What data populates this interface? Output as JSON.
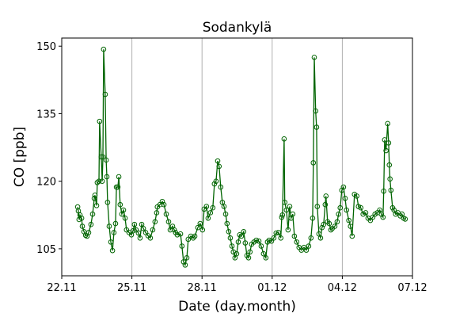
{
  "chart_data": {
    "type": "line",
    "title": "Sodankylä",
    "xlabel": "Date (day.month)",
    "ylabel": "CO [ppb]",
    "x_units": "days since 22.11",
    "xlim": [
      0,
      15
    ],
    "ylim": [
      99,
      151.8
    ],
    "x_ticks": [
      0,
      3,
      6,
      9,
      12,
      15
    ],
    "x_tick_labels": [
      "22.11",
      "25.11",
      "28.11",
      "01.12",
      "04.12",
      "07.12"
    ],
    "y_ticks": [
      105,
      120,
      135,
      150
    ],
    "y_tick_labels": [
      "105",
      "120",
      "135",
      "150"
    ],
    "grid": "vertical lines at x ticks",
    "legend": "none",
    "series": [
      {
        "name": "CO",
        "color": "#006400",
        "marker": "open-circle",
        "x": [
          0.68,
          0.71,
          0.74,
          0.78,
          0.85,
          0.88,
          0.95,
          1.02,
          1.08,
          1.15,
          1.25,
          1.32,
          1.39,
          1.42,
          1.49,
          1.52,
          1.59,
          1.62,
          1.69,
          1.73,
          1.76,
          1.79,
          1.86,
          1.9,
          1.93,
          1.96,
          2.03,
          2.1,
          2.17,
          2.23,
          2.3,
          2.34,
          2.4,
          2.44,
          2.5,
          2.57,
          2.64,
          2.71,
          2.77,
          2.88,
          2.98,
          3.05,
          3.11,
          3.18,
          3.28,
          3.35,
          3.42,
          3.49,
          3.59,
          3.69,
          3.79,
          3.89,
          3.99,
          4.06,
          4.09,
          4.2,
          4.3,
          4.37,
          4.47,
          4.57,
          4.64,
          4.74,
          4.81,
          4.87,
          4.94,
          5.08,
          5.14,
          5.21,
          5.28,
          5.35,
          5.41,
          5.52,
          5.62,
          5.69,
          5.82,
          5.92,
          6.02,
          6.09,
          6.19,
          6.26,
          6.36,
          6.46,
          6.53,
          6.6,
          6.67,
          6.73,
          6.8,
          6.87,
          6.94,
          7.01,
          7.07,
          7.14,
          7.21,
          7.28,
          7.34,
          7.41,
          7.48,
          7.55,
          7.61,
          7.68,
          7.78,
          7.85,
          7.92,
          7.99,
          8.05,
          8.12,
          8.22,
          8.32,
          8.43,
          8.53,
          8.63,
          8.73,
          8.8,
          8.87,
          8.97,
          9.07,
          9.17,
          9.27,
          9.37,
          9.41,
          9.44,
          9.51,
          9.54,
          9.61,
          9.68,
          9.75,
          9.81,
          9.88,
          9.95,
          10.05,
          10.15,
          10.25,
          10.36,
          10.46,
          10.56,
          10.66,
          10.73,
          10.76,
          10.8,
          10.86,
          10.9,
          10.93,
          11.0,
          11.07,
          11.13,
          11.2,
          11.27,
          11.3,
          11.37,
          11.44,
          11.51,
          11.57,
          11.68,
          11.78,
          11.84,
          11.91,
          11.98,
          12.05,
          12.12,
          12.18,
          12.28,
          12.35,
          12.42,
          12.52,
          12.62,
          12.69,
          12.79,
          12.89,
          13.0,
          13.1,
          13.2,
          13.3,
          13.4,
          13.5,
          13.6,
          13.67,
          13.74,
          13.77,
          13.81,
          13.87,
          13.94,
          13.98,
          14.01,
          14.04,
          14.08,
          14.15,
          14.21,
          14.28,
          14.38,
          14.48,
          14.55,
          14.62,
          14.69
        ],
        "y": [
          114.3,
          113.4,
          111.5,
          112.5,
          111.8,
          110,
          108.8,
          108,
          107.8,
          108.6,
          110.4,
          112.7,
          116.2,
          116.9,
          114.6,
          119.7,
          120,
          133.3,
          125.4,
          120,
          125.4,
          149.3,
          139.3,
          124.7,
          121,
          115.3,
          110,
          106.5,
          104.6,
          108.6,
          110.6,
          118.7,
          118.7,
          121,
          114.8,
          112.7,
          113.6,
          111.8,
          109.2,
          108.6,
          108.1,
          109,
          110.4,
          109.2,
          108.5,
          107.4,
          110.4,
          109.5,
          108.6,
          107.9,
          107.4,
          109.2,
          111,
          113,
          114.3,
          114.8,
          115.5,
          114.8,
          112.7,
          111,
          109.2,
          110,
          109.2,
          108.6,
          108.1,
          108.3,
          105.6,
          102.1,
          101.4,
          103,
          107.1,
          107.8,
          107.4,
          107.8,
          109.7,
          110.6,
          109.2,
          113.8,
          114.4,
          111.8,
          113,
          114.1,
          119.4,
          120,
          124.5,
          123.3,
          118.7,
          115.3,
          114.4,
          112.7,
          110.6,
          108.8,
          107.4,
          105.6,
          104.3,
          103,
          103.9,
          106.5,
          108.1,
          107.8,
          108.8,
          106.3,
          103.5,
          103,
          104.3,
          106,
          106.5,
          106.9,
          106.7,
          105.6,
          103.9,
          103,
          106.5,
          106.9,
          106.7,
          107.4,
          108.5,
          108.6,
          107.4,
          112,
          112.5,
          129.4,
          115.3,
          113.6,
          109.2,
          114.4,
          111.8,
          112.7,
          107.8,
          106.5,
          105.3,
          104.7,
          105.3,
          104.7,
          105.6,
          107.4,
          111.8,
          124.1,
          147.5,
          135.6,
          132,
          114.4,
          108.3,
          107.4,
          109.7,
          110.4,
          114.8,
          116.7,
          111,
          110.6,
          109.2,
          109.5,
          110,
          111,
          112.7,
          114.1,
          118,
          118.7,
          116.2,
          113.6,
          111.3,
          110,
          107.8,
          117.1,
          116.7,
          114.4,
          114.1,
          112.7,
          113,
          111.8,
          111.3,
          112,
          112.7,
          113,
          113.6,
          112.7,
          112,
          117.8,
          129.2,
          126.8,
          132.8,
          128.5,
          123.6,
          120.5,
          118,
          114.1,
          113.6,
          112.7,
          113,
          112.3,
          112.7,
          111.8,
          111.6
        ]
      }
    ]
  }
}
